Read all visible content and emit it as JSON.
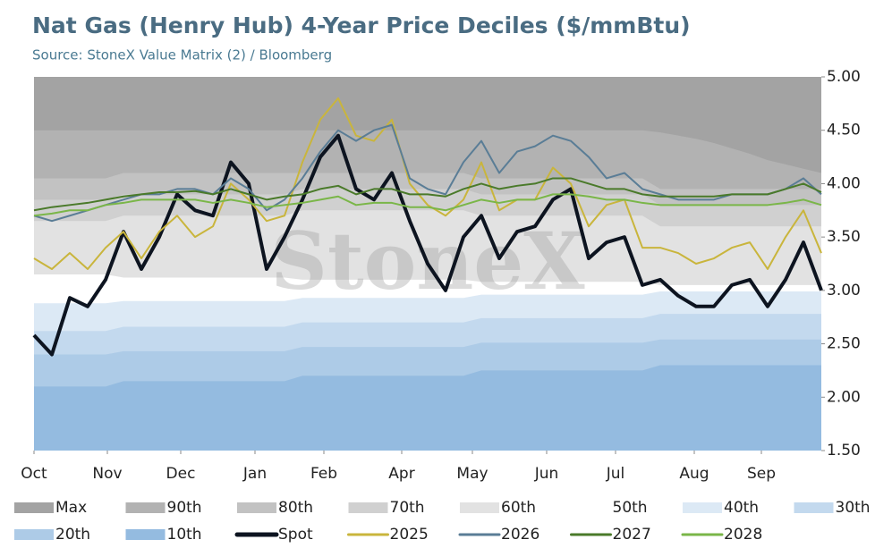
{
  "chart_data": {
    "type": "line",
    "title": "Nat Gas (Henry Hub) 4-Year Price Deciles ($/mmBtu)",
    "subtitle": "Source: StoneX Value Matrix (2) / Bloomberg",
    "watermark": "StoneX",
    "x": [
      0,
      2,
      4,
      6,
      8,
      10,
      12,
      14,
      16,
      18,
      20,
      22,
      24,
      26,
      28,
      30,
      32,
      34,
      36,
      38,
      40,
      42,
      44,
      46,
      48,
      50,
      52,
      54,
      56,
      58,
      60,
      62,
      64,
      66,
      68,
      70,
      72,
      74,
      76,
      78,
      80,
      82,
      84,
      86,
      88
    ],
    "xlim": [
      0,
      88
    ],
    "xticks": [
      {
        "value": 0,
        "label": "Oct"
      },
      {
        "value": 8.2,
        "label": "Nov"
      },
      {
        "value": 16.4,
        "label": "Dec"
      },
      {
        "value": 24.7,
        "label": "Jan"
      },
      {
        "value": 32.4,
        "label": "Feb"
      },
      {
        "value": 41.1,
        "label": "Apr"
      },
      {
        "value": 49,
        "label": "May"
      },
      {
        "value": 57.3,
        "label": "Jun"
      },
      {
        "value": 65,
        "label": "Jul"
      },
      {
        "value": 73.8,
        "label": "Aug"
      },
      {
        "value": 81.3,
        "label": "Sep"
      }
    ],
    "ylim": [
      1.5,
      5.0
    ],
    "yticks": [
      {
        "value": 1.5,
        "label": "1.50"
      },
      {
        "value": 2.0,
        "label": "2.00"
      },
      {
        "value": 2.5,
        "label": "2.50"
      },
      {
        "value": 3.0,
        "label": "3.00"
      },
      {
        "value": 3.5,
        "label": "3.50"
      },
      {
        "value": 4.0,
        "label": "4.00"
      },
      {
        "value": 4.5,
        "label": "4.50"
      },
      {
        "value": 5.0,
        "label": "5.00"
      }
    ],
    "bands": [
      {
        "name": "Max",
        "color": "#a3a3a3",
        "values": [
          5,
          5,
          5,
          5,
          5,
          5,
          5,
          5,
          5,
          5,
          5,
          5,
          5,
          5,
          5,
          5,
          5,
          5,
          5,
          5,
          5,
          5,
          5,
          5,
          5,
          5,
          5,
          5,
          5,
          5,
          5,
          5,
          5,
          5,
          5,
          5,
          5,
          5,
          5,
          5,
          5,
          5,
          5,
          5,
          5
        ]
      },
      {
        "name": "90th",
        "color": "#b2b2b2",
        "values": [
          4.5,
          4.5,
          4.5,
          4.5,
          4.5,
          4.5,
          4.5,
          4.5,
          4.5,
          4.5,
          4.5,
          4.5,
          4.5,
          4.5,
          4.5,
          4.5,
          4.5,
          4.5,
          4.5,
          4.5,
          4.5,
          4.5,
          4.5,
          4.5,
          4.5,
          4.5,
          4.5,
          4.5,
          4.5,
          4.5,
          4.5,
          4.5,
          4.5,
          4.5,
          4.5,
          4.48,
          4.45,
          4.42,
          4.38,
          4.33,
          4.28,
          4.22,
          4.18,
          4.14,
          4.1
        ]
      },
      {
        "name": "80th",
        "color": "#c2c2c2",
        "values": [
          4.05,
          4.05,
          4.05,
          4.05,
          4.05,
          4.1,
          4.1,
          4.1,
          4.1,
          4.1,
          4.1,
          4.1,
          4.1,
          4.1,
          4.1,
          4.1,
          4.1,
          4.1,
          4.1,
          4.1,
          4.1,
          4.1,
          4.1,
          4.1,
          4.1,
          4.05,
          4.05,
          4.05,
          4.05,
          4.05,
          4.05,
          4.05,
          4.05,
          4.05,
          4.05,
          3.95,
          3.95,
          3.95,
          3.95,
          3.95,
          3.95,
          3.95,
          3.95,
          3.95,
          3.95
        ]
      },
      {
        "name": "70th",
        "color": "#d0d0d0",
        "values": [
          3.85,
          3.85,
          3.85,
          3.85,
          3.85,
          3.9,
          3.9,
          3.9,
          3.9,
          3.9,
          3.9,
          3.9,
          3.9,
          3.9,
          3.9,
          3.95,
          3.95,
          3.95,
          3.95,
          3.95,
          3.95,
          3.95,
          3.95,
          3.95,
          3.95,
          3.9,
          3.9,
          3.9,
          3.9,
          3.9,
          3.9,
          3.9,
          3.9,
          3.9,
          3.9,
          3.8,
          3.8,
          3.8,
          3.8,
          3.8,
          3.8,
          3.8,
          3.8,
          3.8,
          3.8
        ]
      },
      {
        "name": "60th",
        "color": "#e2e2e2",
        "values": [
          3.65,
          3.65,
          3.65,
          3.65,
          3.65,
          3.7,
          3.7,
          3.7,
          3.7,
          3.7,
          3.7,
          3.7,
          3.7,
          3.7,
          3.7,
          3.75,
          3.75,
          3.75,
          3.75,
          3.75,
          3.75,
          3.75,
          3.75,
          3.75,
          3.75,
          3.7,
          3.7,
          3.7,
          3.7,
          3.7,
          3.7,
          3.7,
          3.7,
          3.7,
          3.7,
          3.6,
          3.6,
          3.6,
          3.6,
          3.6,
          3.6,
          3.6,
          3.6,
          3.6,
          3.6
        ]
      },
      {
        "name": "50th",
        "color": "#ffffff",
        "values": [
          3.15,
          3.15,
          3.15,
          3.15,
          3.15,
          3.12,
          3.12,
          3.12,
          3.12,
          3.12,
          3.12,
          3.12,
          3.12,
          3.12,
          3.12,
          3.1,
          3.1,
          3.1,
          3.1,
          3.1,
          3.1,
          3.1,
          3.1,
          3.1,
          3.1,
          3.08,
          3.08,
          3.08,
          3.08,
          3.08,
          3.08,
          3.08,
          3.08,
          3.08,
          3.08,
          3.05,
          3.05,
          3.05,
          3.05,
          3.05,
          3.05,
          3.05,
          3.05,
          3.05,
          3.05
        ]
      },
      {
        "name": "40th",
        "color": "#dce9f5",
        "values": [
          2.88,
          2.88,
          2.88,
          2.88,
          2.88,
          2.9,
          2.9,
          2.9,
          2.9,
          2.9,
          2.9,
          2.9,
          2.9,
          2.9,
          2.9,
          2.93,
          2.93,
          2.93,
          2.93,
          2.93,
          2.93,
          2.93,
          2.93,
          2.93,
          2.93,
          2.96,
          2.96,
          2.96,
          2.96,
          2.96,
          2.96,
          2.96,
          2.96,
          2.96,
          2.96,
          2.99,
          2.99,
          2.99,
          2.99,
          2.99,
          2.99,
          2.99,
          2.99,
          2.99,
          2.99
        ]
      },
      {
        "name": "30th",
        "color": "#c3d9ee",
        "values": [
          2.62,
          2.62,
          2.62,
          2.62,
          2.62,
          2.66,
          2.66,
          2.66,
          2.66,
          2.66,
          2.66,
          2.66,
          2.66,
          2.66,
          2.66,
          2.7,
          2.7,
          2.7,
          2.7,
          2.7,
          2.7,
          2.7,
          2.7,
          2.7,
          2.7,
          2.74,
          2.74,
          2.74,
          2.74,
          2.74,
          2.74,
          2.74,
          2.74,
          2.74,
          2.74,
          2.78,
          2.78,
          2.78,
          2.78,
          2.78,
          2.78,
          2.78,
          2.78,
          2.78,
          2.78
        ]
      },
      {
        "name": "20th",
        "color": "#adcbe7",
        "values": [
          2.4,
          2.4,
          2.4,
          2.4,
          2.4,
          2.43,
          2.43,
          2.43,
          2.43,
          2.43,
          2.43,
          2.43,
          2.43,
          2.43,
          2.43,
          2.47,
          2.47,
          2.47,
          2.47,
          2.47,
          2.47,
          2.47,
          2.47,
          2.47,
          2.47,
          2.51,
          2.51,
          2.51,
          2.51,
          2.51,
          2.51,
          2.51,
          2.51,
          2.51,
          2.51,
          2.54,
          2.54,
          2.54,
          2.54,
          2.54,
          2.54,
          2.54,
          2.54,
          2.54,
          2.54
        ]
      },
      {
        "name": "10th",
        "color": "#94bbe0",
        "values": [
          2.1,
          2.1,
          2.1,
          2.1,
          2.1,
          2.15,
          2.15,
          2.15,
          2.15,
          2.15,
          2.15,
          2.15,
          2.15,
          2.15,
          2.15,
          2.2,
          2.2,
          2.2,
          2.2,
          2.2,
          2.2,
          2.2,
          2.2,
          2.2,
          2.2,
          2.25,
          2.25,
          2.25,
          2.25,
          2.25,
          2.25,
          2.25,
          2.25,
          2.25,
          2.25,
          2.3,
          2.3,
          2.3,
          2.3,
          2.3,
          2.3,
          2.3,
          2.3,
          2.3,
          2.3
        ]
      }
    ],
    "series": [
      {
        "name": "Spot",
        "color": "#0d1420",
        "width": 4,
        "values": [
          2.58,
          2.4,
          2.93,
          2.85,
          3.1,
          3.55,
          3.2,
          3.5,
          3.9,
          3.75,
          3.7,
          4.2,
          4.0,
          3.2,
          3.5,
          3.85,
          4.25,
          4.45,
          3.95,
          3.85,
          4.1,
          3.65,
          3.25,
          3.0,
          3.5,
          3.7,
          3.3,
          3.55,
          3.6,
          3.85,
          3.95,
          3.3,
          3.45,
          3.5,
          3.05,
          3.1,
          2.95,
          2.85,
          2.85,
          3.05,
          3.1,
          2.85,
          3.1,
          3.45,
          3.0
        ]
      },
      {
        "name": "2025",
        "color": "#c9b53c",
        "width": 2,
        "values": [
          3.3,
          3.2,
          3.35,
          3.2,
          3.4,
          3.55,
          3.3,
          3.55,
          3.7,
          3.5,
          3.6,
          4.0,
          3.85,
          3.65,
          3.7,
          4.2,
          4.6,
          4.8,
          4.45,
          4.4,
          4.6,
          4.0,
          3.8,
          3.7,
          3.85,
          4.2,
          3.75,
          3.85,
          3.85,
          4.15,
          4.0,
          3.6,
          3.8,
          3.85,
          3.4,
          3.4,
          3.35,
          3.25,
          3.3,
          3.4,
          3.45,
          3.2,
          3.5,
          3.75,
          3.35
        ]
      },
      {
        "name": "2026",
        "color": "#5a7d96",
        "width": 2,
        "values": [
          3.7,
          3.65,
          3.7,
          3.75,
          3.8,
          3.85,
          3.9,
          3.9,
          3.95,
          3.95,
          3.9,
          4.05,
          3.95,
          3.75,
          3.85,
          4.05,
          4.3,
          4.5,
          4.4,
          4.5,
          4.55,
          4.05,
          3.95,
          3.9,
          4.2,
          4.4,
          4.1,
          4.3,
          4.35,
          4.45,
          4.4,
          4.25,
          4.05,
          4.1,
          3.95,
          3.9,
          3.85,
          3.85,
          3.85,
          3.9,
          3.9,
          3.9,
          3.95,
          4.05,
          3.9
        ]
      },
      {
        "name": "2027",
        "color": "#4a7a2a",
        "width": 2,
        "values": [
          3.75,
          3.78,
          3.8,
          3.82,
          3.85,
          3.88,
          3.9,
          3.92,
          3.92,
          3.93,
          3.9,
          3.95,
          3.9,
          3.85,
          3.88,
          3.9,
          3.95,
          3.98,
          3.9,
          3.95,
          3.95,
          3.9,
          3.9,
          3.88,
          3.95,
          4.0,
          3.95,
          3.98,
          4.0,
          4.05,
          4.05,
          4.0,
          3.95,
          3.95,
          3.9,
          3.88,
          3.88,
          3.88,
          3.88,
          3.9,
          3.9,
          3.9,
          3.95,
          4.0,
          3.92
        ]
      },
      {
        "name": "2028",
        "color": "#7ab648",
        "width": 2,
        "values": [
          3.7,
          3.72,
          3.75,
          3.75,
          3.8,
          3.82,
          3.85,
          3.85,
          3.85,
          3.85,
          3.82,
          3.85,
          3.82,
          3.78,
          3.8,
          3.82,
          3.85,
          3.88,
          3.8,
          3.82,
          3.82,
          3.78,
          3.78,
          3.75,
          3.8,
          3.85,
          3.82,
          3.85,
          3.85,
          3.9,
          3.9,
          3.88,
          3.85,
          3.85,
          3.82,
          3.8,
          3.8,
          3.8,
          3.8,
          3.8,
          3.8,
          3.8,
          3.82,
          3.85,
          3.8
        ]
      }
    ]
  }
}
